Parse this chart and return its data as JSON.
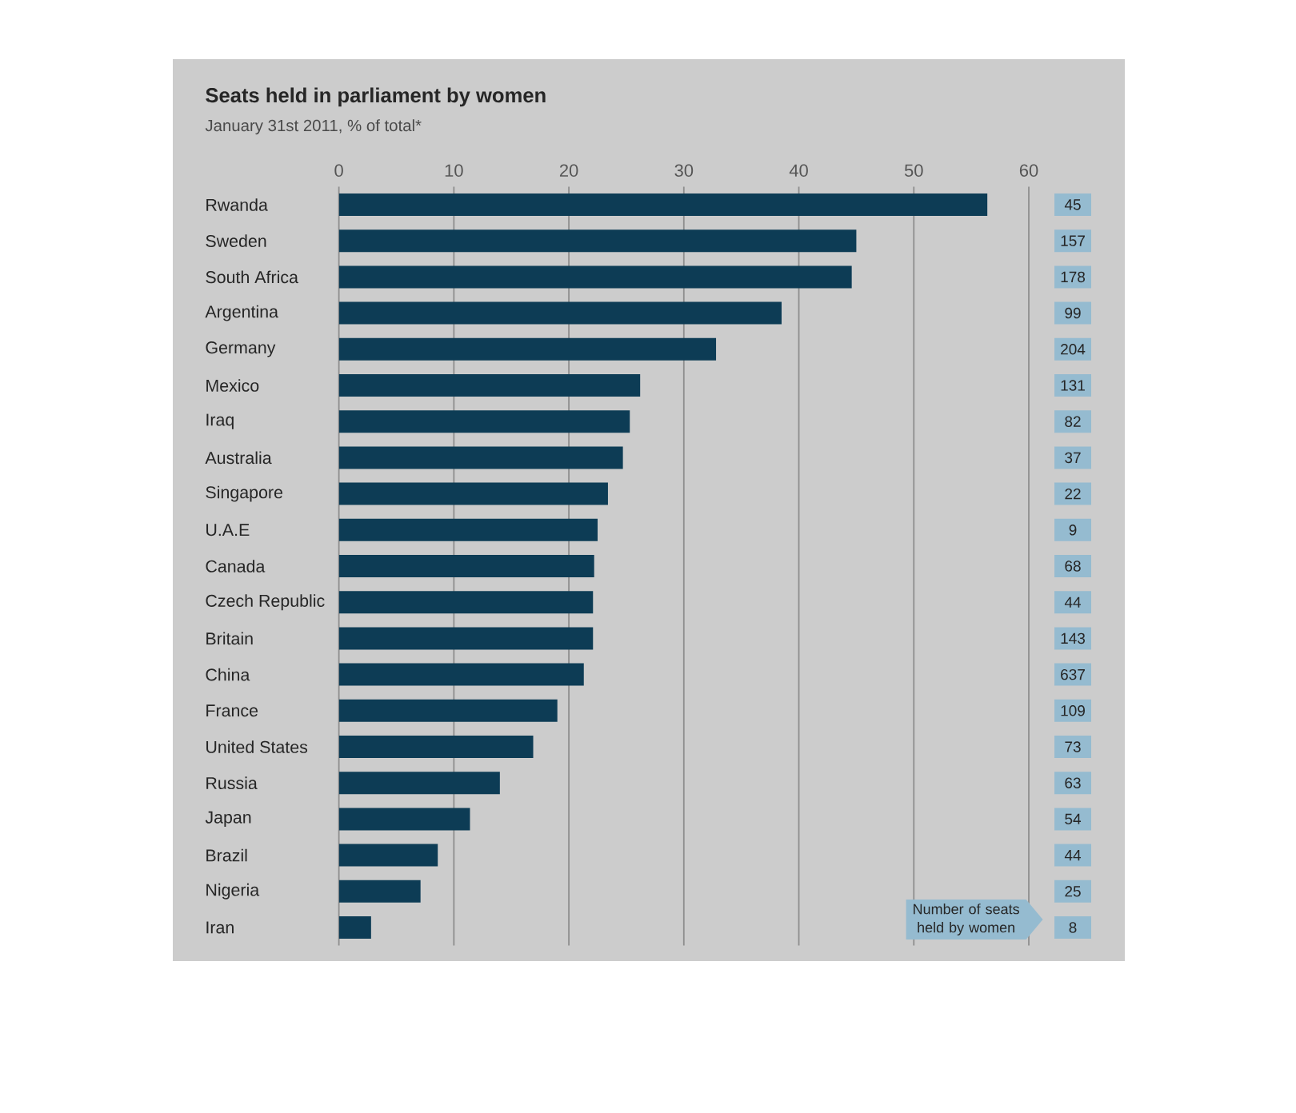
{
  "chart_data": [
    {
      "type": "bar",
      "orientation": "horizontal",
      "title": "Seats held in parliament by women",
      "subtitle": "January 31st 2011, % of total*",
      "categories": [
        "Rwanda",
        "Sweden",
        "South Africa",
        "Argentina",
        "Germany",
        "Mexico",
        "Iraq",
        "Australia",
        "Singapore",
        "U.A.E",
        "Canada",
        "Czech Republic",
        "Britain",
        "China",
        "France",
        "United States",
        "Russia",
        "Japan",
        "Brazil",
        "Nigeria",
        "Iran"
      ],
      "values": [
        56.4,
        45.0,
        44.6,
        38.5,
        32.8,
        26.2,
        25.3,
        24.7,
        23.4,
        22.5,
        22.2,
        22.1,
        22.1,
        21.3,
        19.0,
        16.9,
        14.0,
        11.4,
        8.6,
        7.1,
        2.8
      ],
      "color": "#0d3c55",
      "xlim": [
        0,
        60
      ],
      "xticks": [
        0,
        10,
        20,
        30,
        40,
        50,
        60
      ],
      "grid": "x"
    },
    {
      "type": "other",
      "title": "Number of seats held by women",
      "color": "#95bbd0",
      "data_labels": true,
      "values": [
        45,
        157,
        178,
        99,
        204,
        131,
        82,
        37,
        22,
        9,
        68,
        44,
        143,
        637,
        109,
        73,
        63,
        54,
        44,
        25,
        8
      ]
    }
  ]
}
